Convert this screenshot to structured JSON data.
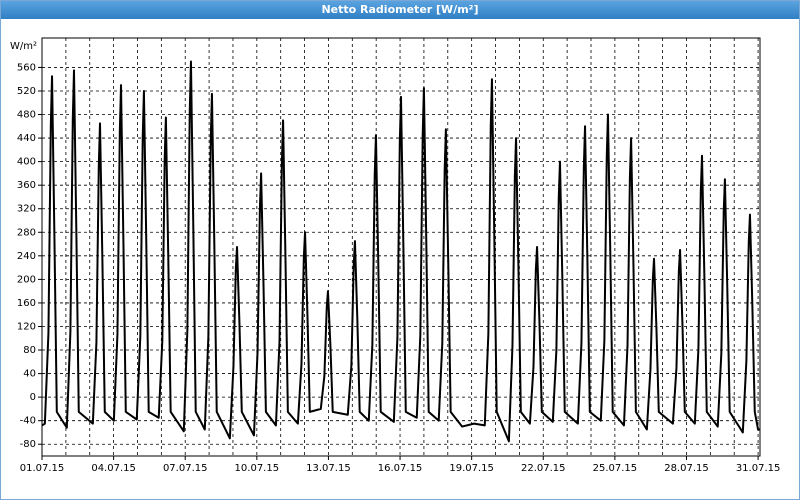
{
  "window_title": "Netto Radiometer [W/m²]",
  "chart_data": {
    "type": "line",
    "y_label": "W/m²",
    "x": [
      0.0,
      0.12,
      0.27,
      0.37,
      0.42,
      0.52,
      0.62,
      1.04,
      1.19,
      1.29,
      1.34,
      1.44,
      1.54,
      2.13,
      2.28,
      2.38,
      2.43,
      2.53,
      2.63,
      3.01,
      3.16,
      3.26,
      3.31,
      3.41,
      3.51,
      3.97,
      4.12,
      4.22,
      4.27,
      4.37,
      4.47,
      4.89,
      5.04,
      5.14,
      5.19,
      5.29,
      5.39,
      5.94,
      6.09,
      6.19,
      6.24,
      6.34,
      6.44,
      6.82,
      6.97,
      7.07,
      7.12,
      7.22,
      7.32,
      7.87,
      8.02,
      8.12,
      8.17,
      8.27,
      8.37,
      8.88,
      9.03,
      9.13,
      9.18,
      9.28,
      9.38,
      9.8,
      9.95,
      10.05,
      10.1,
      10.2,
      10.3,
      10.72,
      10.87,
      10.97,
      11.02,
      11.12,
      11.22,
      11.68,
      11.83,
      11.93,
      11.98,
      12.08,
      12.18,
      12.81,
      12.96,
      13.06,
      13.11,
      13.21,
      13.31,
      13.69,
      13.84,
      13.94,
      13.99,
      14.09,
      14.19,
      14.74,
      14.89,
      14.99,
      15.04,
      15.14,
      15.24,
      15.7,
      15.85,
      15.95,
      16.0,
      16.1,
      16.2,
      16.62,
      16.77,
      16.87,
      16.92,
      17.02,
      17.12,
      17.6,
      18.1,
      18.55,
      18.7,
      18.8,
      18.85,
      18.95,
      19.05,
      19.56,
      19.71,
      19.81,
      19.86,
      19.96,
      20.06,
      20.44,
      20.59,
      20.69,
      20.74,
      20.84,
      20.94,
      21.4,
      21.55,
      21.65,
      21.7,
      21.8,
      21.9,
      22.45,
      22.6,
      22.7,
      22.75,
      22.85,
      22.95,
      23.41,
      23.56,
      23.66,
      23.71,
      23.81,
      23.91,
      24.38,
      24.53,
      24.63,
      24.68,
      24.78,
      24.88,
      25.34,
      25.49,
      25.59,
      25.64,
      25.74,
      25.84,
      26.43,
      26.58,
      26.68,
      26.73,
      26.83,
      26.93,
      27.35,
      27.5,
      27.6,
      27.65,
      27.75,
      27.85,
      28.31,
      28.46,
      28.56,
      28.61,
      28.71,
      28.81,
      29.36,
      29.51,
      29.61,
      29.66,
      29.76,
      29.86,
      30.0,
      30.08
    ],
    "series": [
      {
        "color": "#000000",
        "values": [
          -48,
          -45,
          109,
          463,
          545,
          273,
          -25,
          -52,
          111,
          472,
          555,
          278,
          -25,
          -45,
          93,
          395,
          465,
          233,
          -25,
          -40,
          106,
          451,
          530,
          265,
          -25,
          -38,
          104,
          442,
          520,
          260,
          -25,
          -35,
          95,
          404,
          475,
          238,
          -25,
          -58,
          114,
          485,
          570,
          285,
          -25,
          -55,
          103,
          438,
          515,
          258,
          -25,
          -70,
          51,
          217,
          255,
          128,
          -25,
          -65,
          76,
          323,
          380,
          190,
          -25,
          -48,
          94,
          400,
          470,
          235,
          -25,
          -45,
          56,
          238,
          280,
          140,
          -25,
          -20,
          36,
          153,
          180,
          90,
          -25,
          -30,
          53,
          225,
          265,
          133,
          -25,
          -40,
          89,
          378,
          445,
          223,
          -25,
          -42,
          102,
          434,
          510,
          255,
          -25,
          -35,
          105,
          446,
          525,
          263,
          -25,
          -40,
          91,
          387,
          455,
          228,
          -25,
          -50,
          -45,
          -48,
          108,
          459,
          540,
          270,
          -25,
          -75,
          88,
          374,
          440,
          220,
          -25,
          -45,
          51,
          217,
          255,
          128,
          -25,
          -42,
          80,
          340,
          400,
          200,
          -25,
          -45,
          92,
          391,
          460,
          230,
          -25,
          -40,
          96,
          408,
          480,
          240,
          -25,
          -48,
          88,
          374,
          440,
          220,
          -25,
          -55,
          47,
          200,
          235,
          118,
          -25,
          -45,
          50,
          213,
          250,
          125,
          -25,
          -45,
          82,
          349,
          410,
          205,
          -25,
          -50,
          74,
          315,
          370,
          185,
          -25,
          -60,
          62,
          264,
          310,
          155,
          -25,
          -55,
          -55
        ]
      }
    ],
    "xlim": [
      0,
      30.08
    ],
    "xticks": [
      {
        "value": 0,
        "label": "01.07.15"
      },
      {
        "value": 3,
        "label": "04.07.15"
      },
      {
        "value": 6,
        "label": "07.07.15"
      },
      {
        "value": 9,
        "label": "10.07.15"
      },
      {
        "value": 12,
        "label": "13.07.15"
      },
      {
        "value": 15,
        "label": "16.07.15"
      },
      {
        "value": 18,
        "label": "19.07.15"
      },
      {
        "value": 21,
        "label": "22.07.15"
      },
      {
        "value": 24,
        "label": "25.07.15"
      },
      {
        "value": 27,
        "label": "28.07.15"
      },
      {
        "value": 30,
        "label": "31.07.15"
      }
    ],
    "xgrid": [
      1,
      2,
      3,
      4,
      5,
      6,
      7,
      8,
      9,
      10,
      11,
      12,
      13,
      14,
      15,
      16,
      17,
      18,
      19,
      20,
      21,
      22,
      23,
      24,
      25,
      26,
      27,
      28,
      29,
      30
    ],
    "ylim": [
      -100,
      610
    ],
    "yticks": [
      -80,
      -40,
      0,
      40,
      80,
      120,
      160,
      200,
      240,
      280,
      320,
      360,
      400,
      440,
      480,
      520,
      560
    ],
    "grid": true
  }
}
